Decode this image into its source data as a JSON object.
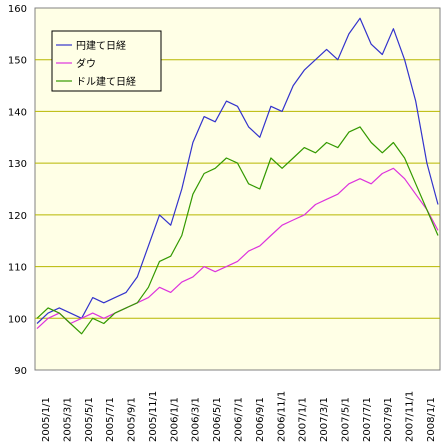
{
  "chart_data": {
    "type": "line",
    "title": "",
    "xlabel": "",
    "ylabel": "",
    "ylim": [
      90,
      160
    ],
    "yticks": [
      90,
      100,
      110,
      120,
      130,
      140,
      150,
      160
    ],
    "grid": "horizontal",
    "legend_position": "top-left",
    "plot_background": "#ffffe6",
    "grid_color": "#b7b700",
    "x_tick_labels": [
      "2005/1/1",
      "2005/3/1",
      "2005/5/1",
      "2005/7/1",
      "2005/9/1",
      "2005/11/1",
      "2006/1/1",
      "2006/3/1",
      "2006/5/1",
      "2006/7/1",
      "2006/9/1",
      "2006/11/1",
      "2007/1/1",
      "2007/3/1",
      "2007/5/1",
      "2007/7/1",
      "2007/9/1",
      "2007/11/1",
      "2008/1/1"
    ],
    "x": [
      0,
      1,
      2,
      3,
      4,
      5,
      6,
      7,
      8,
      9,
      10,
      11,
      12,
      13,
      14,
      15,
      16,
      17,
      18,
      19,
      20,
      21,
      22,
      23,
      24,
      25,
      26,
      27,
      28,
      29,
      30,
      31,
      32,
      33,
      34,
      35,
      36
    ],
    "series": [
      {
        "name": "円建て日経",
        "color": "#3333cc",
        "values": [
          99,
          101,
          102,
          101,
          100,
          104,
          103,
          104,
          105,
          108,
          114,
          120,
          118,
          125,
          134,
          139,
          138,
          142,
          141,
          137,
          135,
          141,
          140,
          145,
          148,
          150,
          152,
          150,
          155,
          158,
          153,
          151,
          156,
          150,
          142,
          130,
          122
        ]
      },
      {
        "name": "ダウ",
        "color": "#dd33dd",
        "values": [
          98,
          100,
          101,
          99,
          100,
          101,
          100,
          101,
          102,
          103,
          104,
          106,
          105,
          107,
          108,
          110,
          109,
          110,
          111,
          113,
          114,
          116,
          118,
          119,
          120,
          122,
          123,
          124,
          126,
          127,
          126,
          128,
          129,
          127,
          124,
          121,
          117
        ]
      },
      {
        "name": "ドル建て日経",
        "color": "#339900",
        "values": [
          100,
          102,
          101,
          99,
          97,
          100,
          99,
          101,
          102,
          103,
          106,
          111,
          112,
          116,
          124,
          128,
          129,
          131,
          130,
          126,
          125,
          131,
          129,
          131,
          133,
          132,
          134,
          133,
          136,
          137,
          134,
          132,
          134,
          131,
          126,
          121,
          116
        ]
      }
    ]
  }
}
